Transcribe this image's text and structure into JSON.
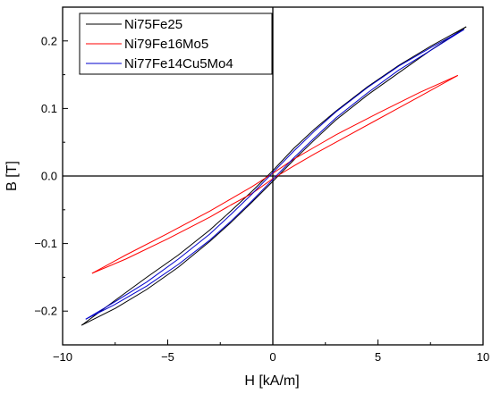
{
  "chart_data": {
    "type": "line",
    "title": "",
    "xlabel": "H [kA/m]",
    "ylabel": "B [T]",
    "xlim": [
      -10,
      10
    ],
    "ylim": [
      -0.25,
      0.25
    ],
    "xticks": [
      -10,
      -5,
      0,
      5,
      10
    ],
    "yticks": [
      -0.2,
      -0.1,
      0.0,
      0.1,
      0.2
    ],
    "xtick_labels": [
      "−10",
      "−5",
      "0",
      "5",
      "10"
    ],
    "ytick_labels": [
      "−0.2",
      "−0.1",
      "0.0",
      "0.1",
      "0.2"
    ],
    "legend_position": "top-left",
    "grid": false,
    "zero_lines": true,
    "series": [
      {
        "name": "Ni75Fe25",
        "color": "#000000",
        "branches": {
          "ascending": [
            [
              -9.1,
              -0.221
            ],
            [
              -7.5,
              -0.196
            ],
            [
              -6,
              -0.168
            ],
            [
              -4.5,
              -0.135
            ],
            [
              -3,
              -0.097
            ],
            [
              -2,
              -0.069
            ],
            [
              -1,
              -0.039
            ],
            [
              0,
              -0.008
            ],
            [
              1,
              0.024
            ],
            [
              2,
              0.054
            ],
            [
              3,
              0.083
            ],
            [
              4.5,
              0.12
            ],
            [
              6,
              0.153
            ],
            [
              7.5,
              0.186
            ],
            [
              9.2,
              0.221
            ]
          ],
          "descending": [
            [
              9.2,
              0.221
            ],
            [
              7.5,
              0.192
            ],
            [
              6,
              0.164
            ],
            [
              4.5,
              0.132
            ],
            [
              3,
              0.096
            ],
            [
              2,
              0.07
            ],
            [
              1,
              0.041
            ],
            [
              0,
              0.008
            ],
            [
              -1,
              -0.023
            ],
            [
              -2,
              -0.052
            ],
            [
              -3,
              -0.08
            ],
            [
              -4.5,
              -0.117
            ],
            [
              -6,
              -0.15
            ],
            [
              -7.5,
              -0.184
            ],
            [
              -9.1,
              -0.221
            ]
          ]
        }
      },
      {
        "name": "Ni79Fe16Mo5",
        "color": "#ff0000",
        "branches": {
          "ascending": [
            [
              -8.6,
              -0.144
            ],
            [
              -7,
              -0.123
            ],
            [
              -5,
              -0.093
            ],
            [
              -3,
              -0.061
            ],
            [
              -2,
              -0.043
            ],
            [
              -1,
              -0.026
            ],
            [
              0,
              -0.004
            ],
            [
              1,
              0.015
            ],
            [
              2,
              0.033
            ],
            [
              3,
              0.05
            ],
            [
              5,
              0.084
            ],
            [
              7,
              0.118
            ],
            [
              8.8,
              0.149
            ]
          ],
          "descending": [
            [
              8.8,
              0.149
            ],
            [
              7,
              0.124
            ],
            [
              5,
              0.093
            ],
            [
              3,
              0.061
            ],
            [
              2,
              0.043
            ],
            [
              1,
              0.025
            ],
            [
              0,
              0.004
            ],
            [
              -1,
              -0.016
            ],
            [
              -2,
              -0.034
            ],
            [
              -3,
              -0.052
            ],
            [
              -5,
              -0.085
            ],
            [
              -7,
              -0.117
            ],
            [
              -8.6,
              -0.144
            ]
          ]
        }
      },
      {
        "name": "Ni77Fe14Cu5Mo4",
        "color": "#0000cc",
        "branches": {
          "ascending": [
            [
              -8.9,
              -0.212
            ],
            [
              -7.5,
              -0.19
            ],
            [
              -6,
              -0.163
            ],
            [
              -4.5,
              -0.131
            ],
            [
              -3,
              -0.095
            ],
            [
              -2,
              -0.067
            ],
            [
              -1,
              -0.037
            ],
            [
              0,
              -0.005
            ],
            [
              1,
              0.027
            ],
            [
              2,
              0.057
            ],
            [
              3,
              0.086
            ],
            [
              4.5,
              0.123
            ],
            [
              6,
              0.157
            ],
            [
              7.5,
              0.186
            ],
            [
              9.1,
              0.217
            ]
          ],
          "descending": [
            [
              9.1,
              0.217
            ],
            [
              7.5,
              0.19
            ],
            [
              6,
              0.163
            ],
            [
              4.5,
              0.131
            ],
            [
              3,
              0.095
            ],
            [
              2,
              0.067
            ],
            [
              1,
              0.037
            ],
            [
              0,
              0.005
            ],
            [
              -1,
              -0.027
            ],
            [
              -2,
              -0.057
            ],
            [
              -3,
              -0.086
            ],
            [
              -4.5,
              -0.123
            ],
            [
              -6,
              -0.157
            ],
            [
              -7.5,
              -0.186
            ],
            [
              -8.9,
              -0.212
            ]
          ]
        }
      }
    ]
  }
}
